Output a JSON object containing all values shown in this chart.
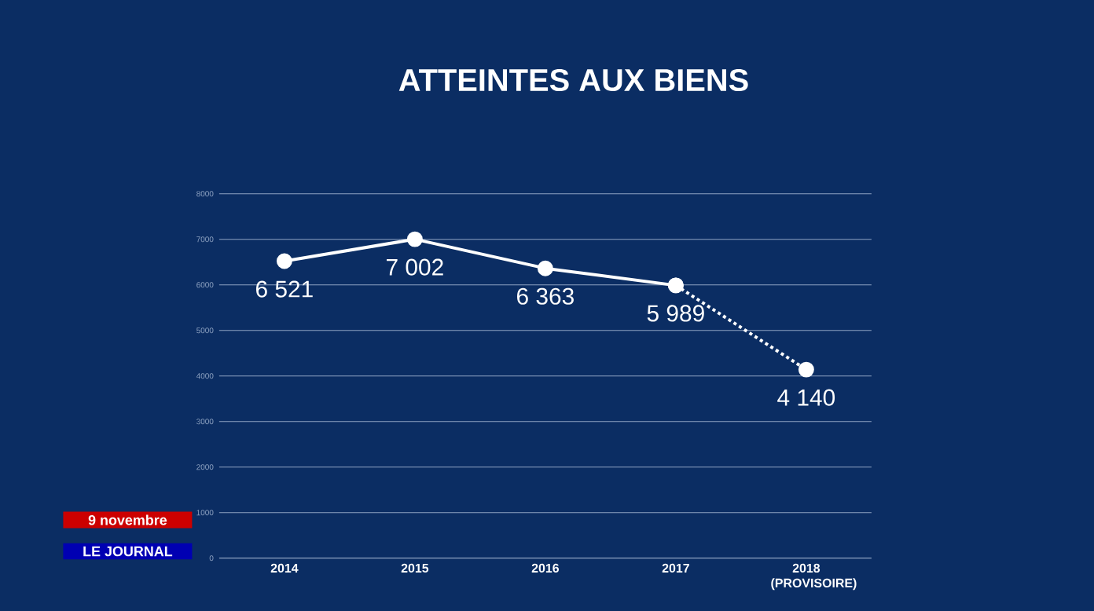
{
  "chart_data": {
    "type": "line",
    "title": "ATTEINTES AUX BIENS",
    "categories": [
      "2014",
      "2015",
      "2016",
      "2017",
      "2018 (PROVISOIRE)"
    ],
    "series": [
      {
        "color": "#ffffff",
        "values": [
          6521,
          7002,
          6363,
          5989,
          null
        ],
        "value_labels": [
          "6 521",
          "7 002",
          "6 363",
          "5 989",
          null
        ],
        "line_style": "solid",
        "marker": "circle"
      },
      {
        "color": "#ffffff",
        "values": [
          null,
          null,
          null,
          5989,
          4140
        ],
        "value_labels": [
          null,
          null,
          null,
          null,
          "4 140"
        ],
        "line_style": "dotted",
        "marker": "circle"
      }
    ],
    "ylim": [
      0,
      8000
    ],
    "yticks": [
      0,
      1000,
      2000,
      3000,
      4000,
      5000,
      6000,
      7000,
      8000
    ],
    "grid": "y",
    "annotations": [
      "9 novembre",
      "LE JOURNAL"
    ]
  }
}
